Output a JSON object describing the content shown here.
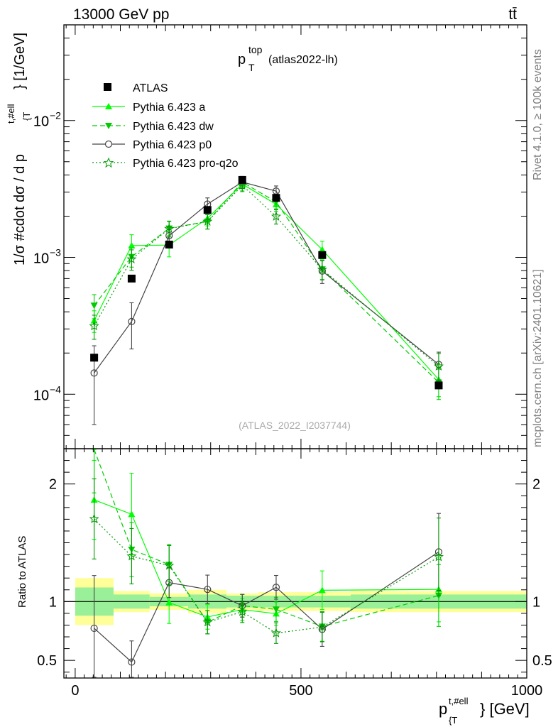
{
  "header": {
    "left": "13000 GeV pp",
    "right": "tt̄"
  },
  "side_labels": {
    "rivet": "Rivet 4.1.0, ≥ 100k events",
    "mcplots": "mcplots.cern.ch [arXiv:2401.10621]"
  },
  "chart_data": {
    "type": "line",
    "title_main": "p",
    "title_sup": "top",
    "title_sub": "T",
    "title_suffix": "(atlas2022-lh)",
    "analysis_id": "(ATLAS_2022_I2037744)",
    "ylabel": "1/σ #cdot dσ / d p",
    "ylabel_sup": "t,#ell",
    "ylabel_sub": "{T",
    "ylabel_unit": "} [1/GeV]",
    "xlabel": "p",
    "xlabel_sup": "t,#ell",
    "xlabel_sub": "{T",
    "xlabel_unit": "} [GeV]",
    "ratio_ylabel": "Ratio to ATLAS",
    "xlim": [
      -25,
      1000
    ],
    "ylim": [
      4e-05,
      0.05
    ],
    "ratio_ylim": [
      0.35,
      2.3
    ],
    "x_ticks": [
      {
        "value": 0,
        "label": "0"
      },
      {
        "value": 500,
        "label": "500"
      },
      {
        "value": 1000,
        "label": "1000"
      }
    ],
    "y_ticks": [
      {
        "value": 0.0001,
        "label": "10",
        "exp": "−4"
      },
      {
        "value": 0.001,
        "label": "10",
        "exp": "−3"
      },
      {
        "value": 0.01,
        "label": "10",
        "exp": "−2"
      }
    ],
    "ratio_ticks": [
      {
        "value": 0.5,
        "label": "0.5"
      },
      {
        "value": 1,
        "label": "1"
      },
      {
        "value": 2,
        "label": "2"
      }
    ],
    "bins": [
      {
        "lo": 0,
        "hi": 85
      },
      {
        "lo": 85,
        "hi": 165
      },
      {
        "lo": 165,
        "hi": 250
      },
      {
        "lo": 250,
        "hi": 335
      },
      {
        "lo": 335,
        "hi": 405
      },
      {
        "lo": 405,
        "hi": 485
      },
      {
        "lo": 485,
        "hi": 610
      },
      {
        "lo": 610,
        "hi": 1000
      }
    ],
    "x": [
      42,
      125,
      208,
      293,
      370,
      445,
      547,
      805
    ],
    "data": {
      "name": "ATLAS",
      "values": [
        0.000185,
        0.0007,
        0.00124,
        0.00222,
        0.00368,
        0.00272,
        0.00104,
        0.000116
      ],
      "band_inner": [
        0.12,
        0.06,
        0.04,
        0.06,
        0.05,
        0.05,
        0.05,
        0.06
      ],
      "band_outer": [
        0.2,
        0.09,
        0.07,
        0.1,
        0.07,
        0.08,
        0.08,
        0.09
      ]
    },
    "series": [
      {
        "name": "Pythia 6.423 a",
        "color": "#00ff00",
        "dash": "",
        "marker": "triangle-up",
        "values": [
          0.000345,
          0.00122,
          0.00123,
          0.00193,
          0.00343,
          0.00244,
          0.00114,
          0.000128
        ],
        "err_rel": [
          0.18,
          0.2,
          0.18,
          0.12,
          0.1,
          0.11,
          0.15,
          0.25
        ]
      },
      {
        "name": "Pythia 6.423 dw",
        "color": "#00cc00",
        "dash": "7,4",
        "marker": "triangle-down",
        "values": [
          0.000445,
          0.00101,
          0.00163,
          0.00183,
          0.00355,
          0.00254,
          0.00082,
          0.000122
        ],
        "err_rel": [
          0.2,
          0.16,
          0.13,
          0.12,
          0.1,
          0.11,
          0.16,
          0.25
        ]
      },
      {
        "name": "Pythia 6.423 p0",
        "color": "#444444",
        "dash": "",
        "marker": "circle-open",
        "values": [
          0.000143,
          0.00034,
          0.00144,
          0.00245,
          0.00355,
          0.00305,
          0.000795,
          0.000165
        ],
        "err_rel": [
          0.58,
          0.37,
          0.11,
          0.11,
          0.1,
          0.09,
          0.19,
          0.23
        ]
      },
      {
        "name": "Pythia 6.423 pro-q2o",
        "color": "#009900",
        "dash": "2,3",
        "marker": "star-open",
        "values": [
          0.000315,
          0.00097,
          0.00162,
          0.00183,
          0.00336,
          0.00199,
          0.000815,
          0.00016
        ],
        "err_rel": [
          0.2,
          0.17,
          0.13,
          0.12,
          0.1,
          0.12,
          0.16,
          0.24
        ]
      }
    ]
  }
}
